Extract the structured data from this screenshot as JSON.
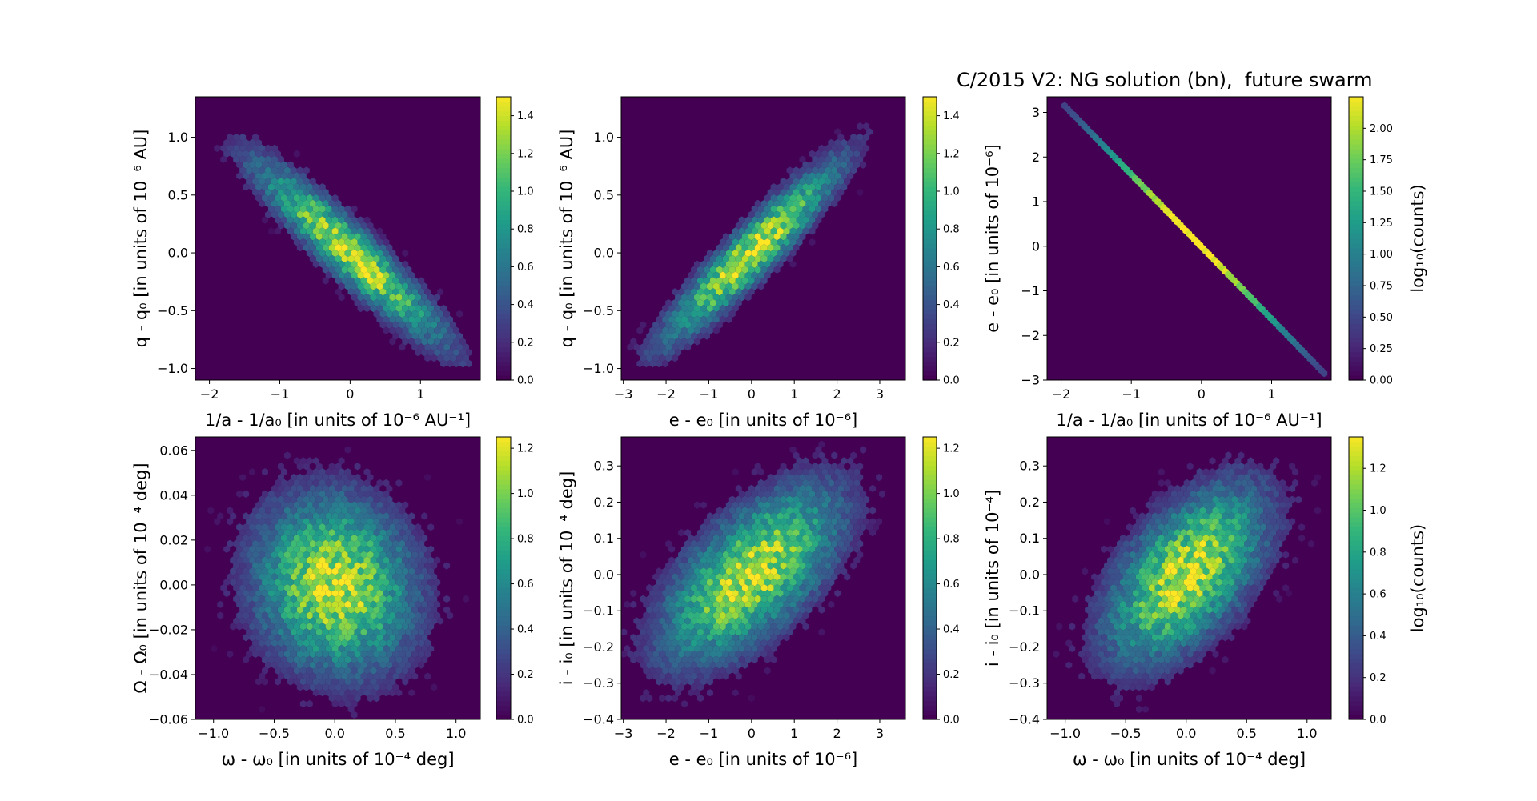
{
  "figure": {
    "title": "C/2015 V2: NG solution (bn),  future swarm"
  },
  "chart_data": [
    {
      "type": "heatmap",
      "subtype": "hexbin",
      "id": "p1",
      "xlabel": "1/a - 1/a₀ [in units of 10⁻⁶ AU⁻¹]",
      "ylabel": "q - q₀ [in units of 10⁻⁶ AU]",
      "xlim": [
        -2.2,
        1.85
      ],
      "ylim": [
        -1.1,
        1.35
      ],
      "xticks": [
        -2,
        -1,
        0,
        1
      ],
      "xtick_labels": [
        "−2",
        "−1",
        "0",
        "1"
      ],
      "yticks": [
        -1.0,
        -0.5,
        0.0,
        0.5,
        1.0
      ],
      "ytick_labels": [
        "−1.0",
        "−0.5",
        "0.0",
        "0.5",
        "1.0"
      ],
      "colorbar": {
        "min": 0,
        "max": 1.5,
        "ticks": [
          0,
          0.2,
          0.4,
          0.6,
          0.8,
          1.0,
          1.2,
          1.4
        ],
        "tick_labels": [
          "0.0",
          "0.2",
          "0.4",
          "0.6",
          "0.8",
          "1.0",
          "1.2",
          "1.4"
        ],
        "label": ""
      },
      "distribution": {
        "mean": [
          0,
          0
        ],
        "std": [
          0.62,
          0.36
        ],
        "correlation": -0.93,
        "peak_log10_count": 1.5,
        "extent": [
          -1.9,
          1.7,
          -1.0,
          1.12
        ]
      }
    },
    {
      "type": "heatmap",
      "subtype": "hexbin",
      "id": "p2",
      "xlabel": "e - e₀ [in units of 10⁻⁶]",
      "ylabel": "q - q₀ [in units of 10⁻⁶ AU]",
      "xlim": [
        -3.05,
        3.6
      ],
      "ylim": [
        -1.1,
        1.35
      ],
      "xticks": [
        -3,
        -2,
        -1,
        0,
        1,
        2,
        3
      ],
      "xtick_labels": [
        "−3",
        "−2",
        "−1",
        "0",
        "1",
        "2",
        "3"
      ],
      "yticks": [
        -1.0,
        -0.5,
        0.0,
        0.5,
        1.0
      ],
      "ytick_labels": [
        "−1.0",
        "−0.5",
        "0.0",
        "0.5",
        "1.0"
      ],
      "colorbar": {
        "min": 0,
        "max": 1.5,
        "ticks": [
          0,
          0.2,
          0.4,
          0.6,
          0.8,
          1.0,
          1.2,
          1.4
        ],
        "tick_labels": [
          "0.0",
          "0.2",
          "0.4",
          "0.6",
          "0.8",
          "1.0",
          "1.2",
          "1.4"
        ],
        "label": ""
      },
      "distribution": {
        "mean": [
          0,
          0
        ],
        "std": [
          0.95,
          0.36
        ],
        "correlation": 0.93,
        "peak_log10_count": 1.5,
        "extent": [
          -3.0,
          3.1,
          -1.0,
          1.12
        ]
      }
    },
    {
      "type": "heatmap",
      "subtype": "hexbin",
      "id": "p3",
      "xlabel": "1/a - 1/a₀ [in units of 10⁻⁶ AU⁻¹]",
      "ylabel": "e - e₀ [in units of 10⁻⁶]",
      "xlim": [
        -2.2,
        1.85
      ],
      "ylim": [
        -3.0,
        3.35
      ],
      "xticks": [
        -2,
        -1,
        0,
        1
      ],
      "xtick_labels": [
        "−2",
        "−1",
        "0",
        "1"
      ],
      "yticks": [
        -3,
        -2,
        -1,
        0,
        1,
        2,
        3
      ],
      "ytick_labels": [
        "−3",
        "−2",
        "−1",
        "0",
        "1",
        "2",
        "3"
      ],
      "colorbar": {
        "min": 0,
        "max": 2.25,
        "ticks": [
          0,
          0.25,
          0.5,
          0.75,
          1.0,
          1.25,
          1.5,
          1.75,
          2.0
        ],
        "tick_labels": [
          "0.00",
          "0.25",
          "0.50",
          "0.75",
          "1.00",
          "1.25",
          "1.50",
          "1.75",
          "2.00"
        ],
        "label": "log₁₀(counts)"
      },
      "line": {
        "from": [
          -1.95,
          3.15
        ],
        "to": [
          1.75,
          -2.85
        ]
      },
      "distribution": {
        "peak_log10_count": 2.25
      }
    },
    {
      "type": "heatmap",
      "subtype": "hexbin",
      "id": "p4",
      "xlabel": "ω - ω₀ [in units of 10⁻⁴ deg]",
      "ylabel": "Ω - Ω₀ [in units of 10⁻⁴ deg]",
      "xlim": [
        -1.15,
        1.2
      ],
      "ylim": [
        -0.06,
        0.066
      ],
      "xticks": [
        -1.0,
        -0.5,
        0.0,
        0.5,
        1.0
      ],
      "xtick_labels": [
        "−1.0",
        "−0.5",
        "0.0",
        "0.5",
        "1.0"
      ],
      "yticks": [
        -0.06,
        -0.04,
        -0.02,
        0.0,
        0.02,
        0.04,
        0.06
      ],
      "ytick_labels": [
        "−0.06",
        "−0.04",
        "−0.02",
        "0.00",
        "0.02",
        "0.04",
        "0.06"
      ],
      "colorbar": {
        "min": 0,
        "max": 1.25,
        "ticks": [
          0,
          0.2,
          0.4,
          0.6,
          0.8,
          1.0,
          1.2
        ],
        "tick_labels": [
          "0.0",
          "0.2",
          "0.4",
          "0.6",
          "0.8",
          "1.0",
          "1.2"
        ],
        "label": ""
      },
      "distribution": {
        "mean": [
          0,
          0
        ],
        "std": [
          0.3,
          0.018
        ],
        "correlation": -0.1,
        "peak_log10_count": 1.25,
        "extent": [
          -1.1,
          1.1,
          -0.058,
          0.062
        ]
      }
    },
    {
      "type": "heatmap",
      "subtype": "hexbin",
      "id": "p5",
      "xlabel": "e - e₀ [in units of 10⁻⁶]",
      "ylabel": "i - i₀ [in units of 10⁻⁴ deg]",
      "xlim": [
        -3.05,
        3.6
      ],
      "ylim": [
        -0.4,
        0.38
      ],
      "xticks": [
        -3,
        -2,
        -1,
        0,
        1,
        2,
        3
      ],
      "xtick_labels": [
        "−3",
        "−2",
        "−1",
        "0",
        "1",
        "2",
        "3"
      ],
      "yticks": [
        -0.4,
        -0.3,
        -0.2,
        -0.1,
        0.0,
        0.1,
        0.2,
        0.3
      ],
      "ytick_labels": [
        "−0.4",
        "−0.3",
        "−0.2",
        "−0.1",
        "0.0",
        "0.1",
        "0.2",
        "0.3"
      ],
      "colorbar": {
        "min": 0,
        "max": 1.25,
        "ticks": [
          0,
          0.2,
          0.4,
          0.6,
          0.8,
          1.0,
          1.2
        ],
        "tick_labels": [
          "0.0",
          "0.2",
          "0.4",
          "0.6",
          "0.8",
          "1.0",
          "1.2"
        ],
        "label": ""
      },
      "distribution": {
        "mean": [
          0,
          0
        ],
        "std": [
          0.95,
          0.11
        ],
        "correlation": 0.62,
        "peak_log10_count": 1.25,
        "extent": [
          -3.0,
          3.1,
          -0.38,
          0.36
        ]
      }
    },
    {
      "type": "heatmap",
      "subtype": "hexbin",
      "id": "p6",
      "xlabel": "ω - ω₀ [in units of 10⁻⁴ deg]",
      "ylabel": "i - i₀ [in units of 10⁻⁴]",
      "xlim": [
        -1.15,
        1.2
      ],
      "ylim": [
        -0.4,
        0.38
      ],
      "xticks": [
        -1.0,
        -0.5,
        0.0,
        0.5,
        1.0
      ],
      "xtick_labels": [
        "−1.0",
        "−0.5",
        "0.0",
        "0.5",
        "1.0"
      ],
      "yticks": [
        -0.4,
        -0.3,
        -0.2,
        -0.1,
        0.0,
        0.1,
        0.2,
        0.3
      ],
      "ytick_labels": [
        "−0.4",
        "−0.3",
        "−0.2",
        "−0.1",
        "0.0",
        "0.1",
        "0.2",
        "0.3"
      ],
      "colorbar": {
        "min": 0,
        "max": 1.35,
        "ticks": [
          0,
          0.2,
          0.4,
          0.6,
          0.8,
          1.0,
          1.2
        ],
        "tick_labels": [
          "0.0",
          "0.2",
          "0.4",
          "0.6",
          "0.8",
          "1.0",
          "1.2"
        ],
        "label": "log₁₀(counts)"
      },
      "distribution": {
        "mean": [
          0,
          0
        ],
        "std": [
          0.3,
          0.11
        ],
        "correlation": 0.55,
        "peak_log10_count": 1.35,
        "extent": [
          -1.1,
          1.1,
          -0.38,
          0.36
        ]
      }
    }
  ],
  "colors": {
    "background": "#440154",
    "colormap": [
      "#440154",
      "#482878",
      "#3e4989",
      "#31688e",
      "#26828e",
      "#1f9e89",
      "#35b779",
      "#6ece58",
      "#b5de2b",
      "#fde725"
    ]
  }
}
